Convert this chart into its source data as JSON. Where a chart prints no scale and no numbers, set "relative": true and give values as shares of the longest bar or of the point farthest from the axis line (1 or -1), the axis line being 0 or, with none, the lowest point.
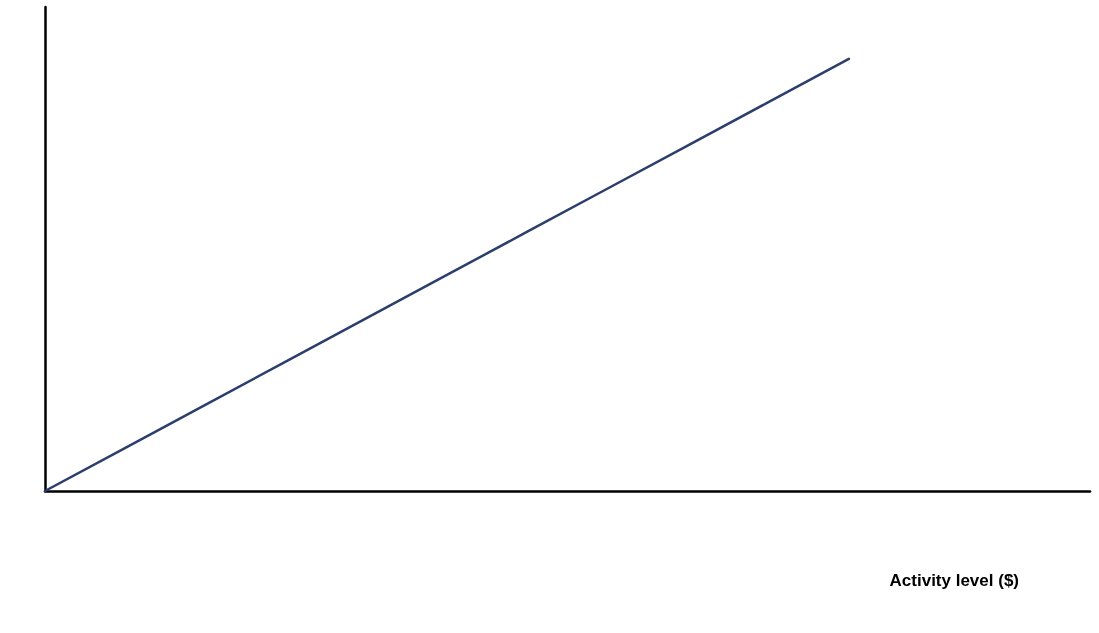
{
  "chart_data": {
    "type": "line",
    "relative": true,
    "xlabel": "Activity level ($)",
    "categories": [
      null,
      null,
      null,
      null,
      null,
      null,
      null,
      null,
      null,
      null,
      null,
      null,
      null,
      null
    ],
    "series": [
      {
        "color": "#2c3e6b",
        "values": [
          0,
          0.1,
          0.2,
          0.3,
          0.4,
          0.5,
          0.6,
          0.7,
          0.8,
          0.9,
          1,
          null,
          null,
          null
        ]
      }
    ],
    "marker": "none",
    "grid": false
  }
}
